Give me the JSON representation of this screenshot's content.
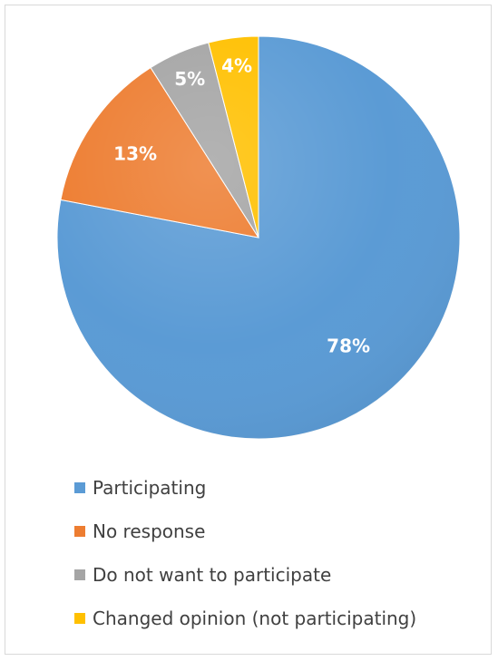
{
  "chart_data": {
    "type": "pie",
    "title": "",
    "legend_position": "bottom",
    "slices": [
      {
        "name": "Participating",
        "value": 78,
        "label": "78%",
        "color": "#5b9bd5"
      },
      {
        "name": "No response",
        "value": 13,
        "label": "13%",
        "color": "#ed7d31"
      },
      {
        "name": "Do not want to participate",
        "value": 5,
        "label": "5%",
        "color": "#a5a5a5"
      },
      {
        "name": "Changed opinion (not participating)",
        "value": 4,
        "label": "4%",
        "color": "#ffc000"
      }
    ]
  }
}
